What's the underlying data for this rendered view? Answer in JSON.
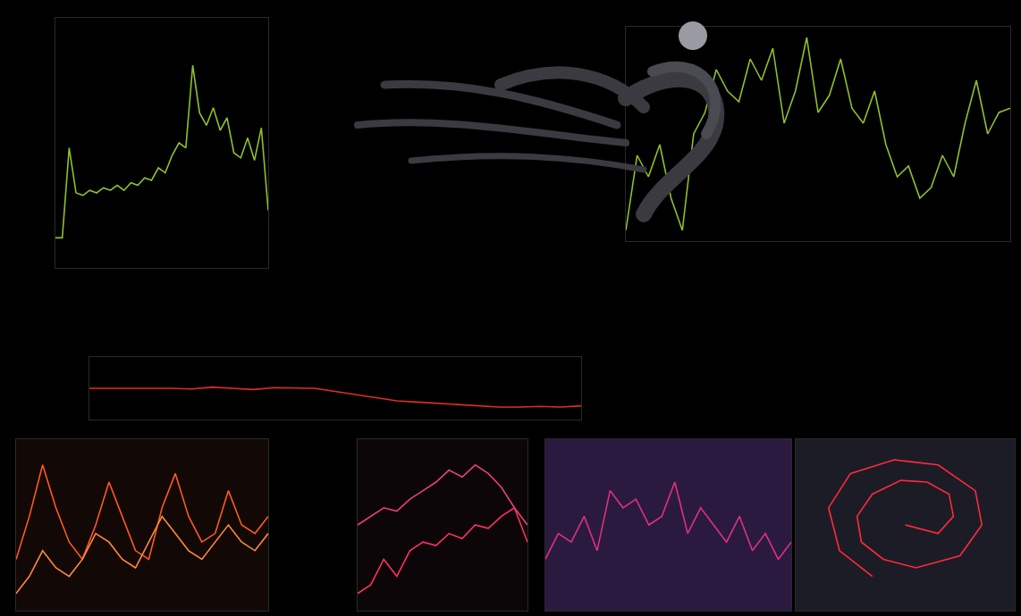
{
  "chart_data": [
    {
      "type": "line",
      "grid": false,
      "tick_labels": false,
      "x": [
        0,
        1,
        2,
        3,
        4,
        5,
        6,
        7,
        8,
        9,
        10,
        11,
        12,
        13,
        14,
        15,
        16,
        17,
        18,
        19,
        20,
        21,
        22,
        23,
        24,
        25,
        26,
        27,
        28,
        29,
        30,
        31
      ],
      "xlim": [
        0,
        31
      ],
      "ylim": [
        0,
        100
      ],
      "series": [
        {
          "color": "#8fc02a",
          "values": [
            12,
            12,
            48,
            30,
            29,
            31,
            30,
            32,
            31,
            33,
            31,
            34,
            33,
            36,
            35,
            40,
            38,
            45,
            50,
            48,
            81,
            62,
            57,
            64,
            55,
            60,
            46,
            44,
            52,
            43,
            56,
            23
          ]
        }
      ]
    },
    {
      "type": "line",
      "grid": false,
      "tick_labels": false,
      "x": [
        0,
        1,
        2,
        3,
        4,
        5,
        6,
        7,
        8,
        9,
        10,
        11,
        12,
        13,
        14,
        15,
        16,
        17,
        18,
        19,
        20,
        21,
        22,
        23,
        24,
        25,
        26,
        27,
        28,
        29,
        30,
        31,
        32,
        33,
        34
      ],
      "xlim": [
        0,
        34
      ],
      "ylim": [
        0,
        100
      ],
      "series": [
        {
          "color": "#8fc02a",
          "values": [
            5,
            40,
            30,
            45,
            20,
            5,
            50,
            60,
            80,
            70,
            65,
            85,
            75,
            90,
            55,
            70,
            95,
            60,
            68,
            85,
            62,
            55,
            70,
            45,
            30,
            35,
            20,
            25,
            40,
            30,
            55,
            75,
            50,
            60,
            62
          ]
        }
      ]
    },
    {
      "type": "line",
      "grid": false,
      "tick_labels": false,
      "x": [
        0,
        1,
        2,
        3,
        4,
        5,
        6,
        7,
        8,
        9,
        10,
        11,
        12,
        13,
        14,
        15,
        16,
        17,
        18,
        19,
        20,
        21,
        22,
        23,
        24
      ],
      "xlim": [
        0,
        24
      ],
      "ylim": [
        0,
        100
      ],
      "series": [
        {
          "color": "#e0301e",
          "values": [
            50,
            50,
            50,
            51,
            50,
            49,
            52,
            50,
            48,
            51,
            50,
            50,
            45,
            40,
            35,
            30,
            28,
            26,
            24,
            22,
            20,
            20,
            21,
            20,
            22
          ]
        }
      ]
    },
    {
      "type": "line",
      "grid": true,
      "tick_labels": false,
      "x": [
        0,
        1,
        2,
        3,
        4,
        5,
        6,
        7,
        8,
        9,
        10,
        11,
        12,
        13,
        14,
        15,
        16,
        17,
        18,
        19
      ],
      "xlim": [
        0,
        19
      ],
      "ylim": [
        0,
        100
      ],
      "series": [
        {
          "color": "#ff5a1f",
          "values": [
            30,
            55,
            85,
            60,
            40,
            30,
            50,
            75,
            55,
            35,
            30,
            60,
            80,
            55,
            40,
            45,
            70,
            50,
            45,
            55
          ]
        },
        {
          "color": "#ff8a3a",
          "values": [
            10,
            20,
            35,
            25,
            20,
            30,
            45,
            40,
            30,
            25,
            40,
            55,
            45,
            35,
            30,
            40,
            50,
            40,
            35,
            45
          ]
        }
      ]
    },
    {
      "type": "line",
      "grid": false,
      "tick_labels": false,
      "x": [
        0,
        1,
        2,
        3,
        4,
        5,
        6,
        7,
        8,
        9,
        10,
        11,
        12,
        13
      ],
      "xlim": [
        0,
        13
      ],
      "ylim": [
        0,
        100
      ],
      "series": [
        {
          "color": "#e8407a",
          "values": [
            50,
            55,
            60,
            58,
            65,
            70,
            75,
            82,
            78,
            85,
            80,
            72,
            60,
            50
          ]
        },
        {
          "color": "#ff3060",
          "values": [
            10,
            15,
            30,
            20,
            35,
            40,
            38,
            45,
            42,
            50,
            48,
            55,
            60,
            40
          ]
        }
      ]
    },
    {
      "type": "line",
      "grid": true,
      "tick_labels": false,
      "x": [
        0,
        1,
        2,
        3,
        4,
        5,
        6,
        7,
        8,
        9,
        10,
        11,
        12,
        13,
        14,
        15,
        16,
        17,
        18,
        19
      ],
      "xlim": [
        0,
        19
      ],
      "ylim": [
        0,
        100
      ],
      "series": [
        {
          "color": "#e0307a",
          "values": [
            30,
            45,
            40,
            55,
            35,
            70,
            60,
            65,
            50,
            55,
            75,
            45,
            60,
            50,
            40,
            55,
            35,
            45,
            30,
            40
          ]
        }
      ]
    },
    {
      "type": "line",
      "grid": true,
      "tick_labels": false,
      "x": [
        50,
        65,
        72,
        70,
        60,
        48,
        35,
        28,
        30,
        40,
        55,
        75,
        85,
        82,
        65,
        45,
        25,
        15,
        20,
        35
      ],
      "xlim": [
        0,
        100
      ],
      "ylim": [
        0,
        100
      ],
      "series": [
        {
          "color": "#ff2a3a",
          "values": [
            50,
            45,
            55,
            68,
            75,
            76,
            68,
            55,
            40,
            30,
            25,
            32,
            50,
            70,
            85,
            88,
            80,
            60,
            35,
            20
          ]
        }
      ]
    }
  ]
}
